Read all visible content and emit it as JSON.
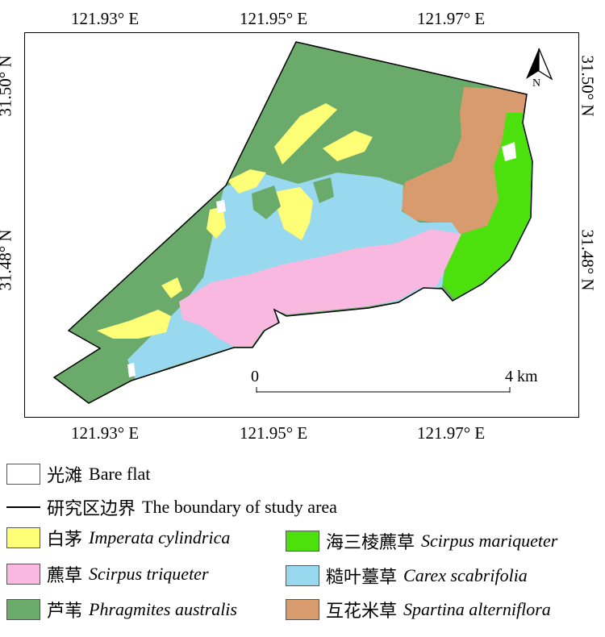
{
  "map": {
    "top_ticks": [
      "121.93° E",
      "121.95° E",
      "121.97° E"
    ],
    "bottom_ticks": [
      "121.93° E",
      "121.95° E",
      "121.97° E"
    ],
    "left_ticks": [
      "31.50° N",
      "31.48° N"
    ],
    "right_ticks": [
      "31.50° N",
      "31.48° N"
    ],
    "north_label": "N",
    "scale": {
      "start": "0",
      "end": "4 km"
    }
  },
  "colors": {
    "bare": "#ffffff",
    "imperata": "#ffff77",
    "scirpus_triqueter": "#f8b8e0",
    "phragmites": "#6aaa6a",
    "scirpus_mariqueter": "#4ce10c",
    "carex": "#99d9ef",
    "spartina": "#d79b6e"
  },
  "legend": {
    "bare_flat": {
      "cn": "光滩",
      "en": "Bare flat"
    },
    "boundary": {
      "cn": "研究区边界",
      "en": "The boundary of study area"
    },
    "imperata": {
      "cn": "白茅",
      "en": "Imperata cylindrica"
    },
    "scirpus_triqueter": {
      "cn": "藨草",
      "en": "Scirpus triqueter"
    },
    "phragmites": {
      "cn": "芦苇",
      "en": "Phragmites australis"
    },
    "scirpus_mariqueter": {
      "cn": "海三棱藨草",
      "en": "Scirpus mariqueter"
    },
    "carex": {
      "cn": "糙叶薹草",
      "en": "Carex scabrifolia"
    },
    "spartina": {
      "cn": "互花米草",
      "en": "Spartina alterniflora"
    }
  }
}
